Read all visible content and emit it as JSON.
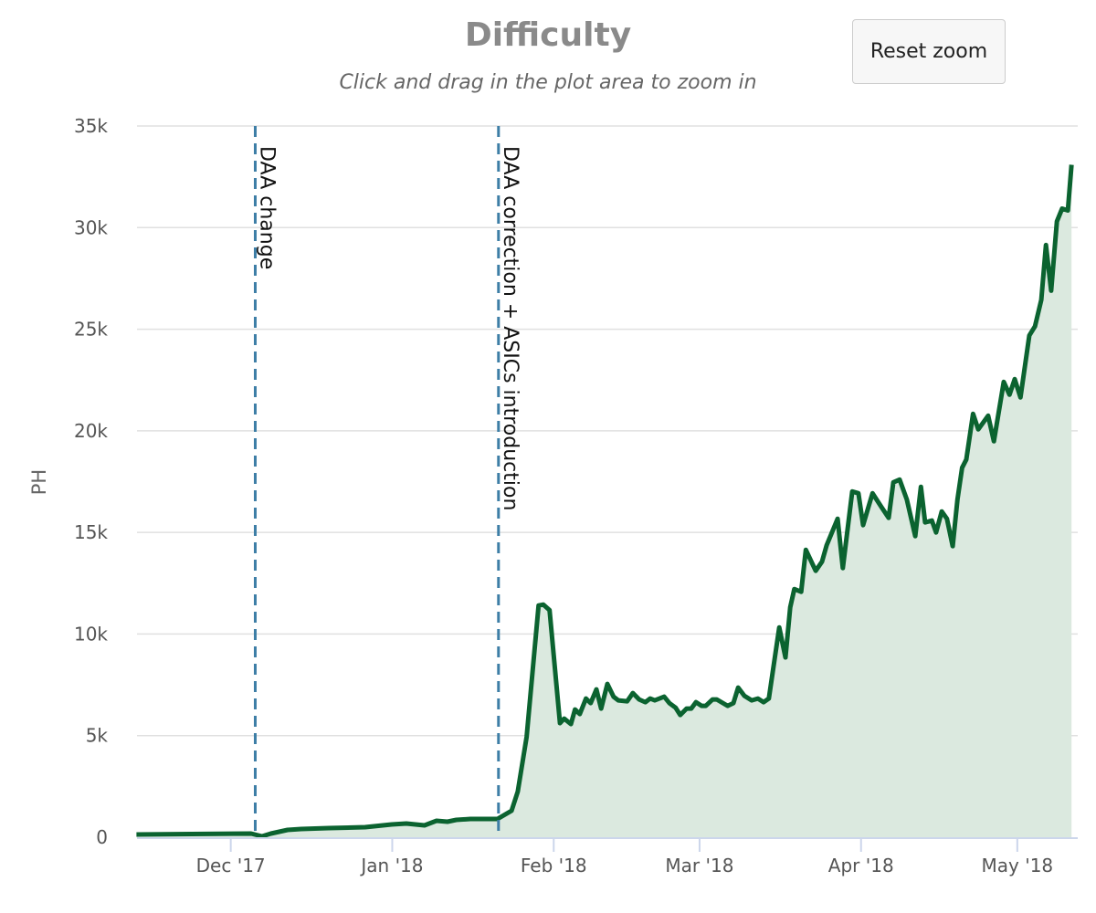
{
  "reset_zoom_label": "Reset zoom",
  "chart_data": {
    "type": "area",
    "title": "Difficulty",
    "subtitle": "Click and drag in the plot area to zoom in",
    "ylabel": "PH",
    "xlabel": "",
    "x_unit": "days since 2017-12-01",
    "ylim": [
      0,
      35000
    ],
    "xlim": [
      -18,
      162.6
    ],
    "yticks": [
      {
        "v": 0,
        "label": "0"
      },
      {
        "v": 5000,
        "label": "5k"
      },
      {
        "v": 10000,
        "label": "10k"
      },
      {
        "v": 15000,
        "label": "15k"
      },
      {
        "v": 20000,
        "label": "20k"
      },
      {
        "v": 25000,
        "label": "25k"
      },
      {
        "v": 30000,
        "label": "30k"
      },
      {
        "v": 35000,
        "label": "35k"
      }
    ],
    "xticks": [
      {
        "v": 0,
        "label": "Dec '17"
      },
      {
        "v": 31,
        "label": "Jan '18"
      },
      {
        "v": 62,
        "label": "Feb '18"
      },
      {
        "v": 90,
        "label": "Mar '18"
      },
      {
        "v": 121,
        "label": "Apr '18"
      },
      {
        "v": 151,
        "label": "May '18"
      }
    ],
    "grid": true,
    "plot_lines": [
      {
        "x": 4.7,
        "label": "DAA change"
      },
      {
        "x": 51.4,
        "label": "DAA correction + ASICs introduction"
      }
    ],
    "colors": {
      "line": "#0b6330",
      "fill": "#dbe9df",
      "plot_line": "#3d7ea6",
      "grid": "#e0e0e0",
      "axis": "#ccd6eb"
    },
    "series": [
      {
        "name": "Difficulty",
        "points": [
          [
            -18.1,
            135
          ],
          [
            3.9,
            180
          ],
          [
            6.0,
            45
          ],
          [
            7.7,
            180
          ],
          [
            10.9,
            360
          ],
          [
            13.5,
            404
          ],
          [
            18.8,
            449
          ],
          [
            25.8,
            494
          ],
          [
            30.9,
            629
          ],
          [
            33.7,
            674
          ],
          [
            37.2,
            584
          ],
          [
            39.5,
            808
          ],
          [
            41.6,
            763
          ],
          [
            43.3,
            853
          ],
          [
            46.0,
            898
          ],
          [
            51.2,
            898
          ],
          [
            53.9,
            1302
          ],
          [
            55.1,
            2245
          ],
          [
            56.8,
            4939
          ],
          [
            59.1,
            11405
          ],
          [
            60.0,
            11450
          ],
          [
            61.2,
            11180
          ],
          [
            63.2,
            5613
          ],
          [
            64.0,
            5837
          ],
          [
            65.3,
            5568
          ],
          [
            66.1,
            6286
          ],
          [
            67.0,
            6062
          ],
          [
            68.2,
            6825
          ],
          [
            69.1,
            6600
          ],
          [
            70.2,
            7274
          ],
          [
            71.1,
            6331
          ],
          [
            72.3,
            7543
          ],
          [
            73.5,
            6915
          ],
          [
            74.4,
            6735
          ],
          [
            76.1,
            6690
          ],
          [
            77.2,
            7094
          ],
          [
            78.4,
            6780
          ],
          [
            79.6,
            6645
          ],
          [
            80.5,
            6825
          ],
          [
            81.4,
            6735
          ],
          [
            83.2,
            6915
          ],
          [
            84.2,
            6600
          ],
          [
            85.4,
            6376
          ],
          [
            86.3,
            6017
          ],
          [
            87.5,
            6331
          ],
          [
            88.4,
            6331
          ],
          [
            89.3,
            6645
          ],
          [
            90.4,
            6466
          ],
          [
            91.2,
            6466
          ],
          [
            92.5,
            6780
          ],
          [
            93.3,
            6780
          ],
          [
            95.4,
            6466
          ],
          [
            96.5,
            6600
          ],
          [
            97.4,
            7364
          ],
          [
            98.6,
            6960
          ],
          [
            100.0,
            6735
          ],
          [
            101.2,
            6825
          ],
          [
            102.3,
            6645
          ],
          [
            103.3,
            6825
          ],
          [
            105.3,
            10327
          ],
          [
            106.5,
            8845
          ],
          [
            107.4,
            11315
          ],
          [
            108.2,
            12213
          ],
          [
            109.5,
            12078
          ],
          [
            110.4,
            14144
          ],
          [
            112.3,
            13111
          ],
          [
            113.5,
            13560
          ],
          [
            114.4,
            14368
          ],
          [
            116.5,
            15670
          ],
          [
            117.5,
            13246
          ],
          [
            119.3,
            17017
          ],
          [
            120.5,
            16927
          ],
          [
            121.4,
            15356
          ],
          [
            123.2,
            16927
          ],
          [
            124.9,
            16254
          ],
          [
            126.3,
            15715
          ],
          [
            127.2,
            17466
          ],
          [
            128.4,
            17601
          ],
          [
            129.8,
            16613
          ],
          [
            131.4,
            14817
          ],
          [
            132.5,
            17242
          ],
          [
            133.3,
            15491
          ],
          [
            134.6,
            15580
          ],
          [
            135.4,
            14997
          ],
          [
            136.5,
            16029
          ],
          [
            137.5,
            15670
          ],
          [
            138.6,
            14323
          ],
          [
            139.5,
            16613
          ],
          [
            140.4,
            18185
          ],
          [
            141.2,
            18589
          ],
          [
            142.5,
            20834
          ],
          [
            143.5,
            20070
          ],
          [
            145.4,
            20744
          ],
          [
            146.5,
            19487
          ],
          [
            148.4,
            22405
          ],
          [
            149.5,
            21777
          ],
          [
            150.5,
            22540
          ],
          [
            151.6,
            21642
          ],
          [
            153.3,
            24695
          ],
          [
            154.4,
            25144
          ],
          [
            155.6,
            26446
          ],
          [
            156.5,
            29140
          ],
          [
            157.5,
            26895
          ],
          [
            158.6,
            30307
          ],
          [
            159.6,
            30936
          ],
          [
            160.7,
            30846
          ],
          [
            161.4,
            33091
          ]
        ]
      }
    ]
  }
}
